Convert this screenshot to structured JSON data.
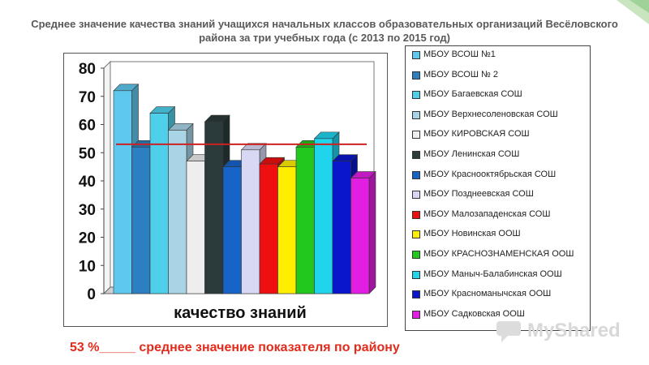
{
  "title_line1": "Среднее значение качества знаний учащихся начальных классов образовательных организаций Весёловского",
  "title_line2": "района за три учебных года (с 2013 по 2015 год)",
  "footer": "53 %_____ среднее значение показателя по району",
  "watermark": "MyShared",
  "chart_data": {
    "type": "bar",
    "xlabel": "качество знаний",
    "ylim": [
      0,
      80
    ],
    "yticks": [
      0,
      10,
      20,
      30,
      40,
      50,
      60,
      70,
      80
    ],
    "reference_line": 53,
    "reference_color": "#cc2222",
    "series": [
      {
        "name": "МБОУ ВСОШ №1",
        "value": 72,
        "color": "#5fc8ee"
      },
      {
        "name": "МБОУ ВСОШ № 2",
        "value": 52,
        "color": "#2c7fc0"
      },
      {
        "name": "МБОУ Багаевская СОШ",
        "value": 64,
        "color": "#4fd0ea"
      },
      {
        "name": "МБОУ Верхнесоленовская СОШ",
        "value": 58,
        "color": "#a8d4e6"
      },
      {
        "name": "МБОУ КИРОВСКАЯ СОШ",
        "value": 47,
        "color": "#eeeeee"
      },
      {
        "name": "МБОУ Ленинская СОШ",
        "value": 61,
        "color": "#2b3a3a"
      },
      {
        "name": "МБОУ Краснооктябрьская СОШ",
        "value": 45,
        "color": "#1763c8"
      },
      {
        "name": "МБОУ Позднеевская СОШ",
        "value": 51,
        "color": "#d8d8f4"
      },
      {
        "name": "МБОУ Малозападенская СОШ",
        "value": 46,
        "color": "#ee1010"
      },
      {
        "name": "МБОУ Новинская ООШ",
        "value": 45,
        "color": "#ffee00"
      },
      {
        "name": "МБОУ КРАСНОЗНАМЕНСКАЯ ООШ",
        "value": 52,
        "color": "#22c81e"
      },
      {
        "name": "МБОУ Маныч-Балабинская ООШ",
        "value": 55,
        "color": "#20d4ee"
      },
      {
        "name": "МБОУ Красноманычская ООШ",
        "value": 47,
        "color": "#0a16cc"
      },
      {
        "name": "МБОУ Садковская ООШ",
        "value": 41,
        "color": "#e21ee2"
      }
    ]
  }
}
